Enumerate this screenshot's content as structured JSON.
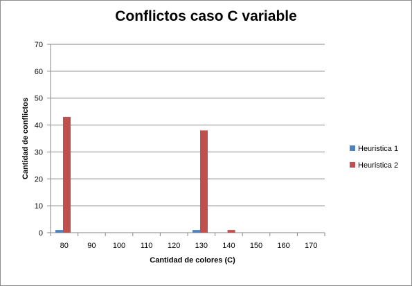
{
  "chart_data": {
    "type": "bar",
    "title": "Conflictos caso C variable",
    "xlabel": "Cantidad de colores (C)",
    "ylabel": "Cantidad de conflictos",
    "categories": [
      "80",
      "90",
      "100",
      "110",
      "120",
      "130",
      "140",
      "150",
      "160",
      "170"
    ],
    "yticks": [
      "0",
      "10",
      "20",
      "30",
      "40",
      "50",
      "60",
      "70"
    ],
    "ylim": [
      0,
      70
    ],
    "grid": true,
    "legend_position": "right",
    "series": [
      {
        "name": "Heuristica 1",
        "color": "#4f81bd",
        "values": [
          1,
          0,
          0,
          0,
          0,
          1,
          0,
          0,
          0,
          0
        ]
      },
      {
        "name": "Heuristica 2",
        "color": "#c0504d",
        "values": [
          43,
          0,
          0,
          0,
          0,
          38,
          1,
          0,
          0,
          0
        ]
      }
    ]
  }
}
